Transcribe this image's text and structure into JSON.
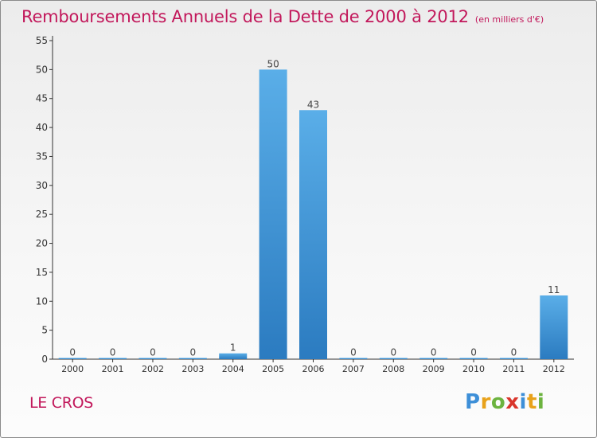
{
  "chart_data": {
    "type": "bar",
    "title": "Remboursements Annuels de la Dette de 2000 à 2012",
    "unit_label": "(en milliers d'€)",
    "categories": [
      "2000",
      "2001",
      "2002",
      "2003",
      "2004",
      "2005",
      "2006",
      "2007",
      "2008",
      "2009",
      "2010",
      "2011",
      "2012"
    ],
    "values": [
      0,
      0,
      0,
      0,
      1,
      50,
      43,
      0,
      0,
      0,
      0,
      0,
      11
    ],
    "ylim": [
      0,
      55
    ],
    "y_ticks": [
      0,
      5,
      10,
      15,
      20,
      25,
      30,
      35,
      40,
      45,
      50,
      55
    ],
    "xlabel": "",
    "ylabel": "",
    "grid": false,
    "colors": {
      "bar_top": "#5aaee8",
      "bar_bottom": "#2b7bc0",
      "title": "#c2185b",
      "axis": "#333333"
    }
  },
  "place_name": "LE CROS",
  "logo_text": "Proxiti"
}
